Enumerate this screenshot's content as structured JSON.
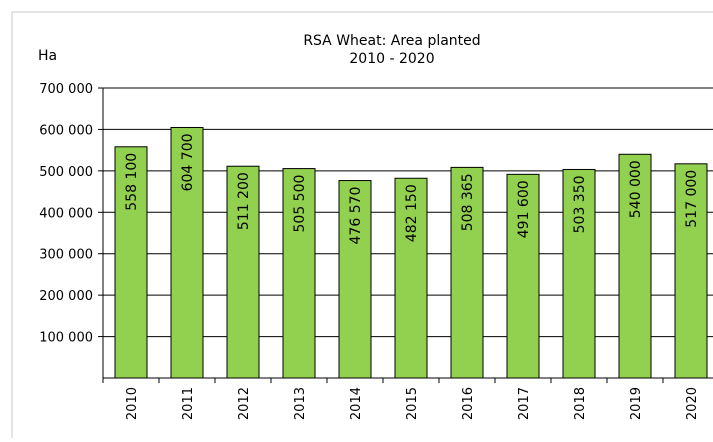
{
  "chart_data": {
    "type": "bar",
    "title": "RSA Wheat: Area planted",
    "subtitle": "2010 - 2020",
    "ylabel": "Ha",
    "xlabel": "",
    "categories": [
      "2010",
      "2011",
      "2012",
      "2013",
      "2014",
      "2015",
      "2016",
      "2017",
      "2018",
      "2019",
      "2020"
    ],
    "values": [
      558100,
      604700,
      511200,
      505500,
      476570,
      482150,
      508365,
      491600,
      503350,
      540000,
      517000
    ],
    "data_labels": [
      "558 100",
      "604 700",
      "511 200",
      "505 500",
      "476 570",
      "482 150",
      "508 365",
      "491 600",
      "503 350",
      "540 000",
      "517 000"
    ],
    "y_ticks": [
      100000,
      200000,
      300000,
      400000,
      500000,
      600000,
      700000
    ],
    "y_tick_labels": [
      "100 000",
      "200 000",
      "300 000",
      "400 000",
      "500 000",
      "600 000",
      "700 000"
    ],
    "ylim": [
      0,
      700000
    ],
    "grid": true,
    "legend": "none",
    "colors": {
      "bar": "#92d050",
      "bar_stroke": "#000000",
      "grid": "#000000",
      "frame": "#bfbfbf"
    }
  }
}
